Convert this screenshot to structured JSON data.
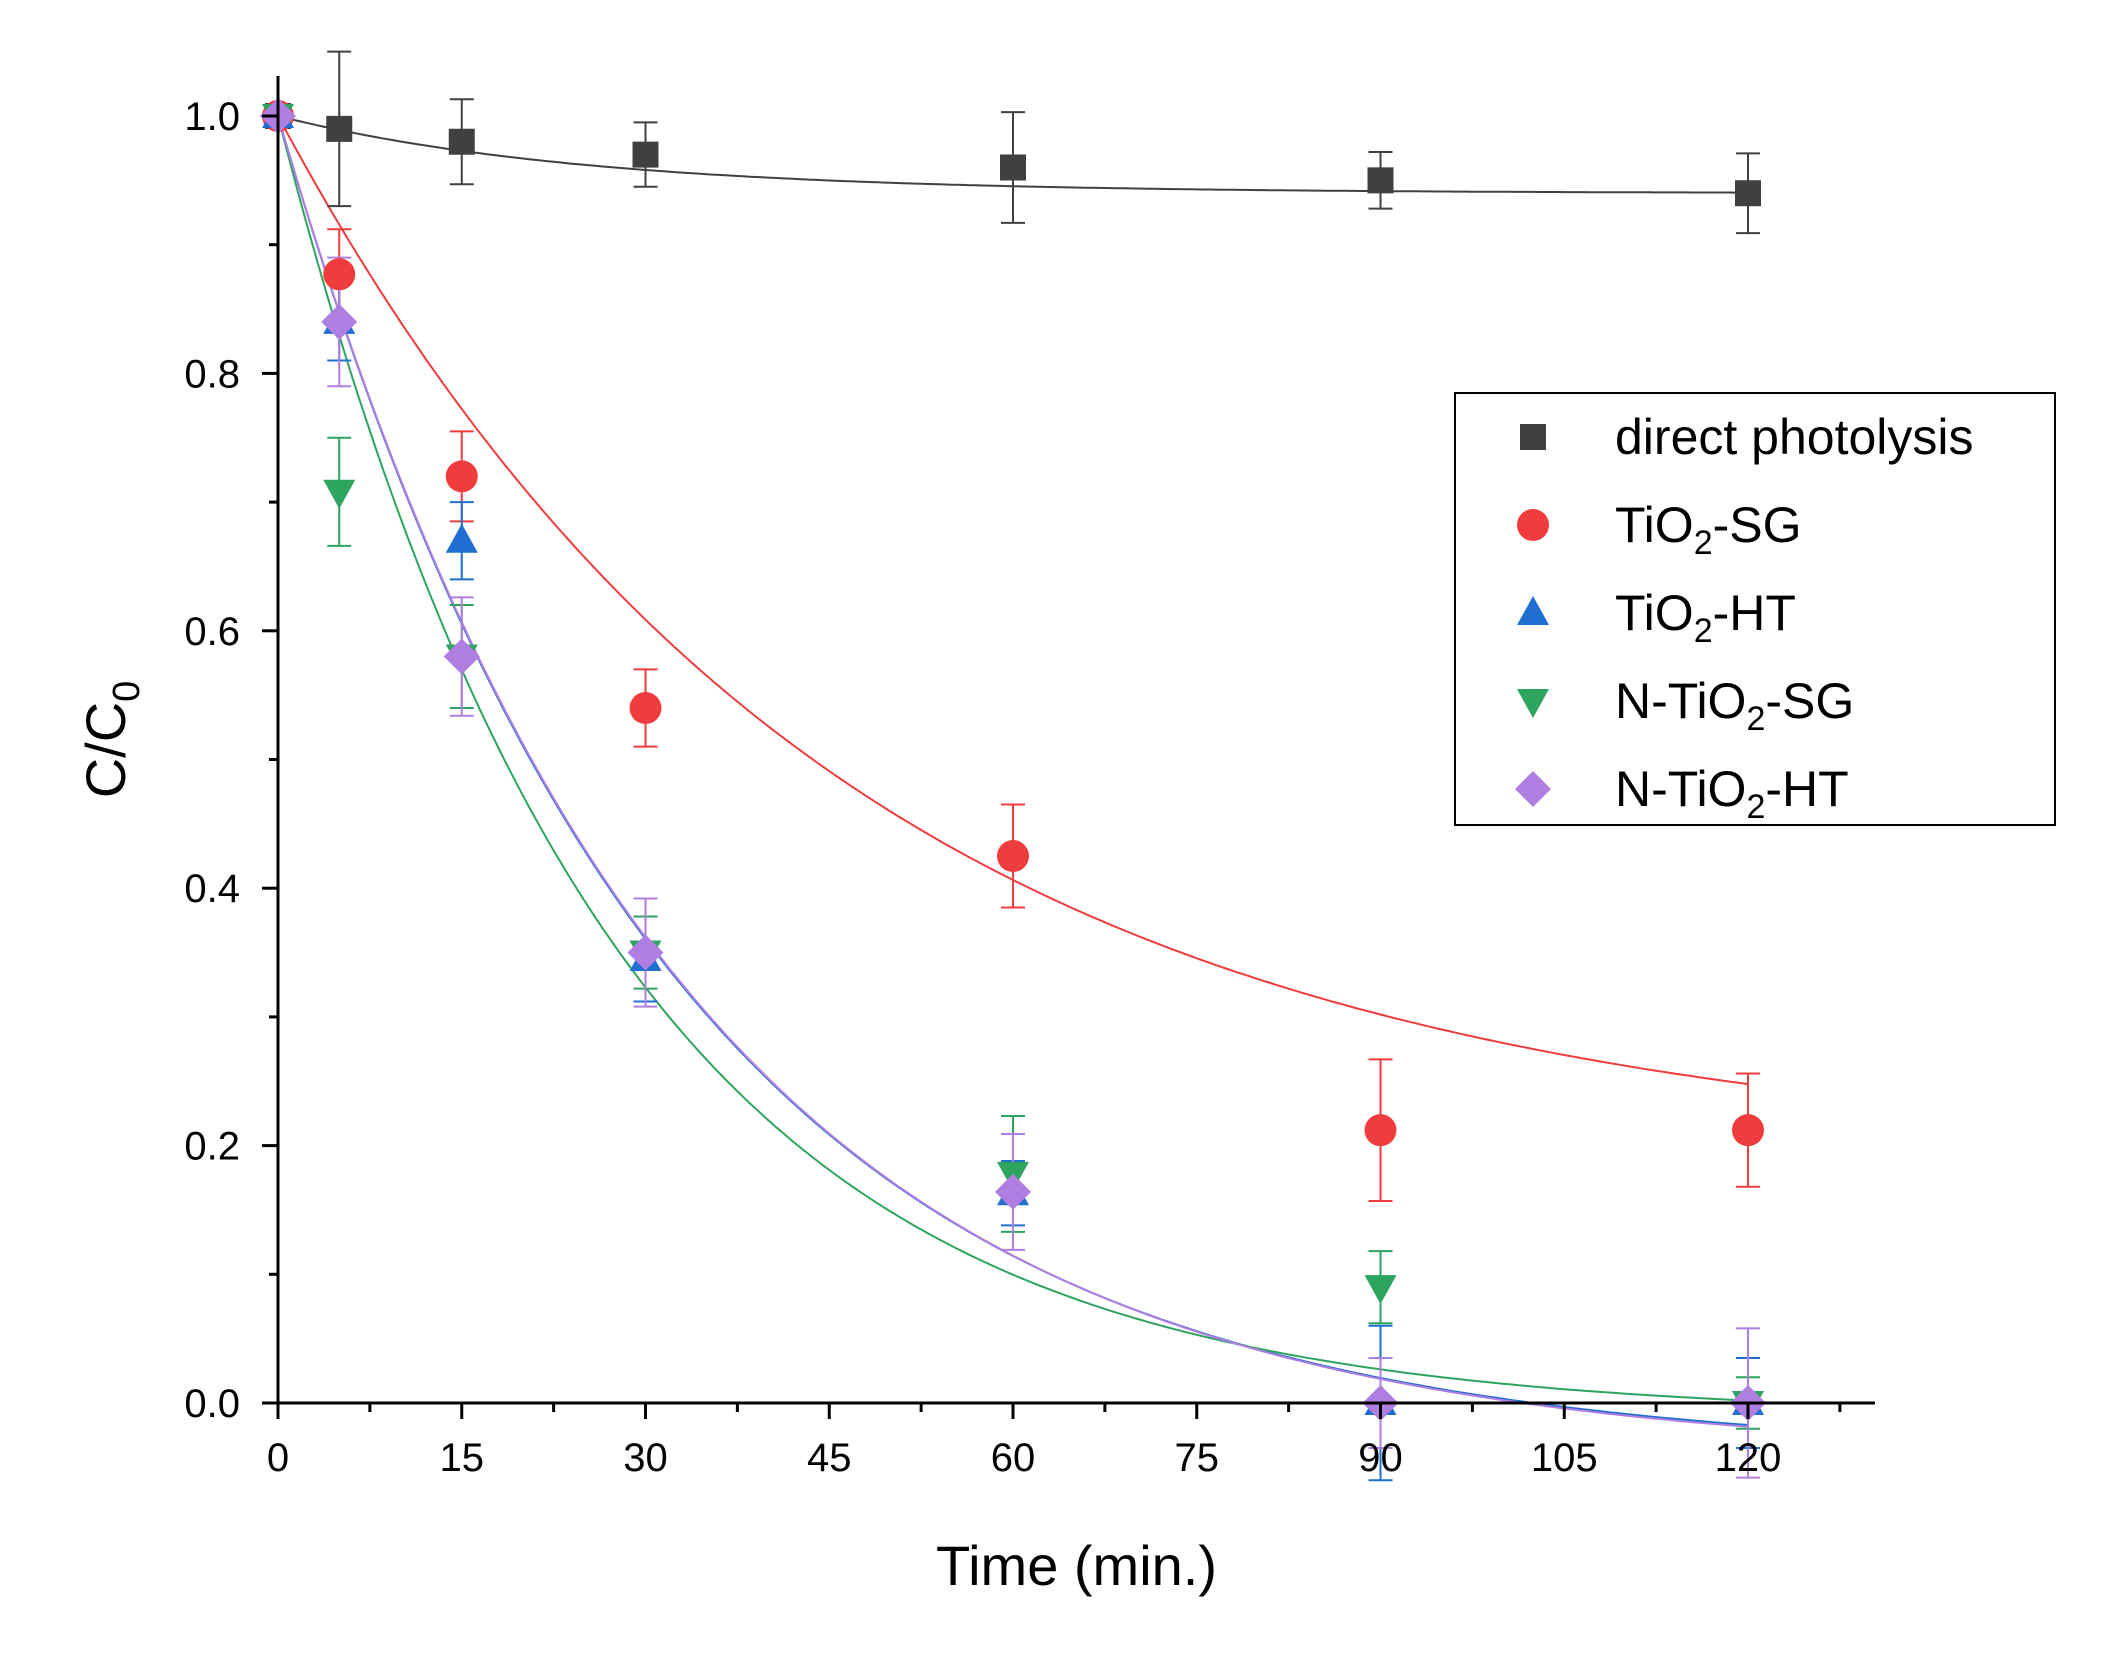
{
  "chart_data": {
    "type": "scatter",
    "xlabel": "Time (min.)",
    "ylabel": {
      "main": "C/C",
      "sub": "0"
    },
    "xlim": [
      0,
      130
    ],
    "ylim": [
      0,
      1.0
    ],
    "x_ticks": [
      0,
      15,
      30,
      45,
      60,
      75,
      90,
      105,
      120
    ],
    "x_tick_labels": [
      "0",
      "15",
      "30",
      "45",
      "60",
      "75",
      "90",
      "105",
      "120"
    ],
    "y_ticks": [
      0.0,
      0.2,
      0.4,
      0.6,
      0.8,
      1.0
    ],
    "y_tick_labels": [
      "0.0",
      "0.2",
      "0.4",
      "0.6",
      "0.8",
      "1.0"
    ],
    "grid": false,
    "legend_position": "right",
    "series": [
      {
        "key": "direct-photolysis",
        "name": {
          "main": "direct photolysis"
        },
        "marker": "square",
        "color": "#404040",
        "x": [
          0,
          5,
          15,
          30,
          60,
          90,
          120
        ],
        "y": [
          1.0,
          0.99,
          0.98,
          0.97,
          0.96,
          0.95,
          0.94
        ],
        "err": [
          0.0,
          0.06,
          0.033,
          0.025,
          0.043,
          0.022,
          0.031
        ],
        "fit": {
          "a": 0.94,
          "b": 0.06,
          "k": 0.04
        }
      },
      {
        "key": "tio2-sg",
        "name": {
          "main": "TiO",
          "sub": "2",
          "suffix": "-SG"
        },
        "marker": "circle",
        "color": "#f03c3c",
        "x": [
          0,
          5,
          15,
          30,
          60,
          90,
          120
        ],
        "y": [
          1.0,
          0.877,
          0.72,
          0.54,
          0.425,
          0.212,
          0.212
        ],
        "err": [
          0.0,
          0.035,
          0.035,
          0.03,
          0.04,
          0.055,
          0.044
        ],
        "fit": {
          "a": 0.19,
          "b": 0.81,
          "k": 0.022
        }
      },
      {
        "key": "tio2-ht",
        "name": {
          "main": "TiO",
          "sub": "2",
          "suffix": "-HT"
        },
        "marker": "triangle-up",
        "color": "#1f6fd1",
        "x": [
          0,
          5,
          15,
          30,
          60,
          90,
          120
        ],
        "y": [
          1.0,
          0.84,
          0.67,
          0.345,
          0.163,
          0.0,
          0.0
        ],
        "err": [
          0.0,
          0.03,
          0.03,
          0.033,
          0.025,
          0.06,
          0.035
        ],
        "fit": {
          "a": -0.04,
          "b": 1.04,
          "k": 0.0318
        }
      },
      {
        "key": "n-tio2-sg",
        "name": {
          "main": "N-TiO",
          "sub": "2",
          "suffix": "-SG"
        },
        "marker": "triangle-down",
        "color": "#2ea55f",
        "x": [
          0,
          5,
          15,
          30,
          60,
          90,
          120
        ],
        "y": [
          1.0,
          0.708,
          0.58,
          0.35,
          0.178,
          0.09,
          0.0
        ],
        "err": [
          0.0,
          0.042,
          0.04,
          0.028,
          0.045,
          0.028,
          0.02
        ],
        "fit": {
          "a": -0.01,
          "b": 1.01,
          "k": 0.037
        }
      },
      {
        "key": "n-tio2-ht",
        "name": {
          "main": "N-TiO",
          "sub": "2",
          "suffix": "-HT"
        },
        "marker": "diamond",
        "color": "#b07ee0",
        "x": [
          0,
          5,
          15,
          30,
          60,
          90,
          120
        ],
        "y": [
          1.0,
          0.84,
          0.58,
          0.35,
          0.164,
          0.0,
          0.0
        ],
        "err": [
          0.0,
          0.05,
          0.046,
          0.042,
          0.045,
          0.035,
          0.058
        ],
        "fit": {
          "a": -0.042,
          "b": 1.042,
          "k": 0.0316
        }
      }
    ]
  }
}
